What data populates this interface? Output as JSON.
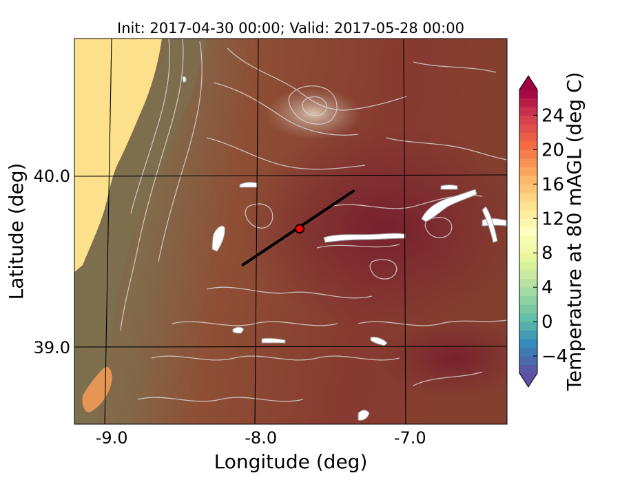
{
  "chart_data": {
    "type": "heatmap",
    "title": "Init: 2017-04-30 00:00; Valid: 2017-05-28 00:00",
    "xlabel": "Longitude (deg)",
    "ylabel": "Latitude (deg)",
    "xlim": [
      -9.25,
      -6.35
    ],
    "ylim": [
      38.55,
      40.8
    ],
    "x_ticks": [
      {
        "value": -9.0,
        "label": "-9.0"
      },
      {
        "value": -8.0,
        "label": "-8.0"
      },
      {
        "value": -7.0,
        "label": "-7.0"
      }
    ],
    "y_ticks": [
      {
        "value": 40.0,
        "label": "40.0"
      },
      {
        "value": 39.0,
        "label": "39.0"
      }
    ],
    "grid": true,
    "colorbar": {
      "label": "Temperature at 80 mAGL (deg C)",
      "min": -6,
      "max": 27,
      "extend": "both",
      "ticks": [
        {
          "value": -4,
          "label": "−4"
        },
        {
          "value": 0,
          "label": "0"
        },
        {
          "value": 4,
          "label": "4"
        },
        {
          "value": 8,
          "label": "8"
        },
        {
          "value": 12,
          "label": "12"
        },
        {
          "value": 16,
          "label": "16"
        },
        {
          "value": 20,
          "label": "20"
        },
        {
          "value": 24,
          "label": "24"
        }
      ],
      "colormap": [
        "#5e4fa2",
        "#3288bd",
        "#66c2a5",
        "#abdda4",
        "#e6f598",
        "#ffffbf",
        "#fee08b",
        "#fdae61",
        "#f46d43",
        "#d53e4f",
        "#9e0142"
      ]
    },
    "cross_section_line": {
      "start": {
        "lon": -8.12,
        "lat": 39.48
      },
      "end": {
        "lon": -7.38,
        "lat": 39.91
      },
      "color": "#000000"
    },
    "marker": {
      "lon": -7.74,
      "lat": 39.69,
      "color": "#ff0000"
    },
    "colors": {
      "ocean": "#fde08c",
      "coast_land": "#7e7150",
      "inland": "#8c4a32",
      "hot_core": "#7c2530",
      "contour": "#d9d4d0"
    }
  }
}
